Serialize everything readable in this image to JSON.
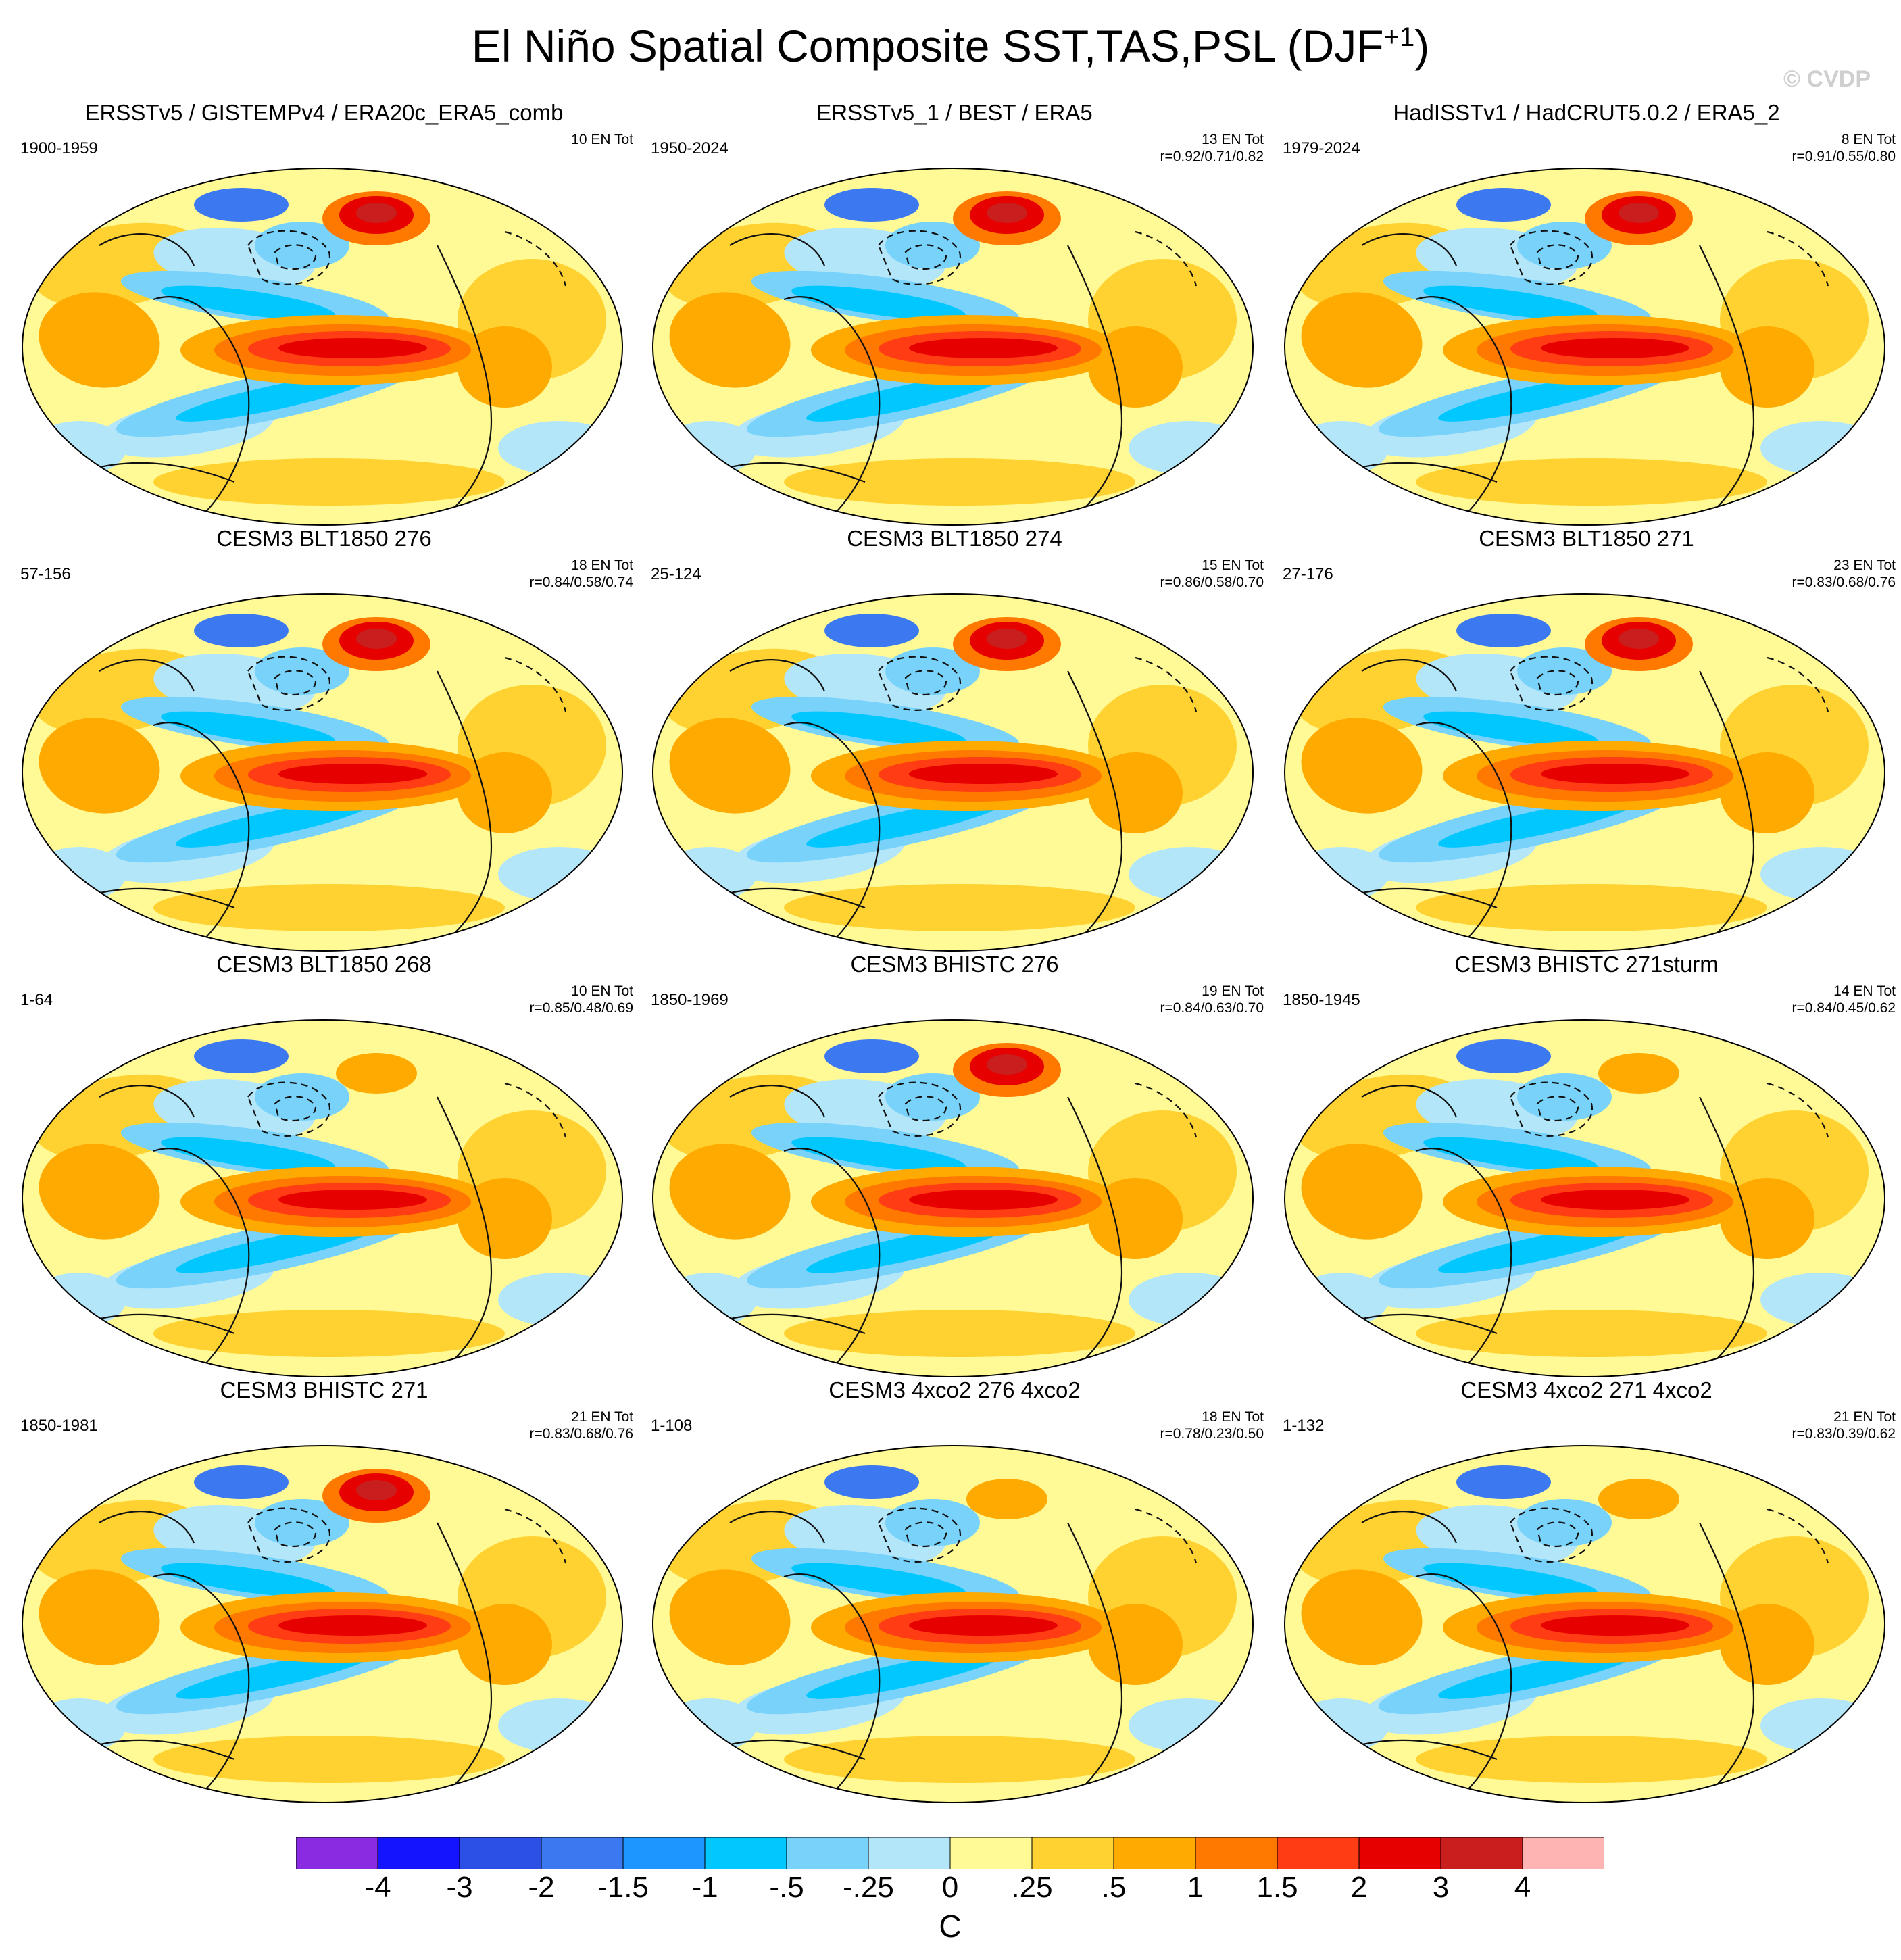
{
  "title": {
    "main": "El Niño Spatial Composite SST,TAS,PSL (DJF",
    "sup": "+1",
    "close": ")"
  },
  "watermark": "© CVDP",
  "panels": [
    {
      "title": "ERSSTv5 / GISTEMPv4 / ERA20c_ERA5_comb",
      "years": "1900-1959",
      "events": "10 EN Tot",
      "corr": "",
      "hot_blob": true
    },
    {
      "title": "ERSSTv5_1 / BEST / ERA5",
      "years": "1950-2024",
      "events": "13 EN Tot",
      "corr": "r=0.92/0.71/0.82",
      "hot_blob": true
    },
    {
      "title": "HadISSTv1 / HadCRUT5.0.2 / ERA5_2",
      "years": "1979-2024",
      "events": "8 EN Tot",
      "corr": "r=0.91/0.55/0.80",
      "hot_blob": true
    },
    {
      "title": "CESM3 BLT1850 276",
      "years": "57-156",
      "events": "18 EN Tot",
      "corr": "r=0.84/0.58/0.74",
      "hot_blob": true
    },
    {
      "title": "CESM3 BLT1850 274",
      "years": "25-124",
      "events": "15 EN Tot",
      "corr": "r=0.86/0.58/0.70",
      "hot_blob": true
    },
    {
      "title": "CESM3 BLT1850 271",
      "years": "27-176",
      "events": "23 EN Tot",
      "corr": "r=0.83/0.68/0.76",
      "hot_blob": true
    },
    {
      "title": "CESM3 BLT1850 268",
      "years": "1-64",
      "events": "10 EN Tot",
      "corr": "r=0.85/0.48/0.69",
      "hot_blob": false
    },
    {
      "title": "CESM3 BHISTC 276",
      "years": "1850-1969",
      "events": "19 EN Tot",
      "corr": "r=0.84/0.63/0.70",
      "hot_blob": true
    },
    {
      "title": "CESM3 BHISTC 271sturm",
      "years": "1850-1945",
      "events": "14 EN Tot",
      "corr": "r=0.84/0.45/0.62",
      "hot_blob": false
    },
    {
      "title": "CESM3 BHISTC 271",
      "years": "1850-1981",
      "events": "21 EN Tot",
      "corr": "r=0.83/0.68/0.76",
      "hot_blob": true
    },
    {
      "title": "CESM3 4xco2 276 4xco2",
      "years": "1-108",
      "events": "18 EN Tot",
      "corr": "r=0.78/0.23/0.50",
      "hot_blob": false
    },
    {
      "title": "CESM3 4xco2 271 4xco2",
      "years": "1-132",
      "events": "21 EN Tot",
      "corr": "r=0.83/0.39/0.62",
      "hot_blob": false
    }
  ],
  "colorbar": {
    "colors": [
      "#8a2be2",
      "#1414ff",
      "#2c50e6",
      "#3c78f0",
      "#1e96ff",
      "#00c8ff",
      "#78d2fa",
      "#b4e6fa",
      "#fffa96",
      "#ffd232",
      "#ffaa00",
      "#ff7800",
      "#ff3c14",
      "#e60000",
      "#c81e1e",
      "#ffb4b4"
    ],
    "labels": [
      "-4",
      "-3",
      "-2",
      "-1.5",
      "-1",
      "-.5",
      "-.25",
      "0",
      ".25",
      ".5",
      "1",
      "1.5",
      "2",
      "3",
      "4"
    ],
    "units": "C"
  }
}
